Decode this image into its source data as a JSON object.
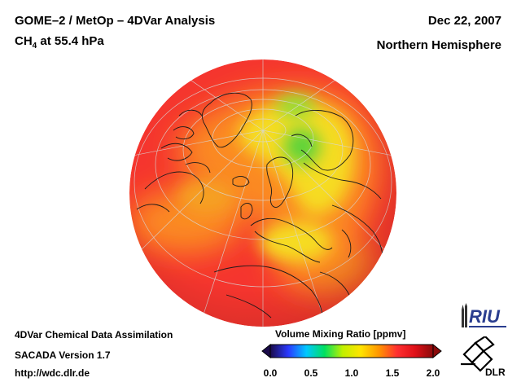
{
  "header": {
    "title": "GOME–2 / MetOp – 4DVar Analysis",
    "species_main": "CH",
    "species_sub": "4",
    "level": " at 55.4 hPa",
    "date": "Dec 22, 2007",
    "region": "Northern Hemisphere"
  },
  "footer": {
    "line1": "4DVar Chemical Data Assimilation",
    "line2": "SACADA Version 1.7",
    "line3": "http://wdc.dlr.de"
  },
  "colorbar": {
    "title": "Volume Mixing Ratio [ppmv]",
    "ticks": [
      "0.0",
      "0.5",
      "1.0",
      "1.5",
      "2.0"
    ],
    "range": [
      0.0,
      2.0
    ],
    "stops": [
      "#1a0a4a",
      "#2a3aff",
      "#00c8ff",
      "#00e060",
      "#c0f000",
      "#ffe400",
      "#ff9600",
      "#ff3030",
      "#e01018",
      "#8a0a0a"
    ]
  },
  "logos": {
    "riu": "RIU",
    "dlr": "DLR"
  },
  "map": {
    "projection": "orthographic",
    "hemisphere": "northern",
    "colors": {
      "background_field": "#f5352e",
      "orange": "#fb8a22",
      "yellow": "#f6dc24",
      "green": "#5cd33a"
    }
  }
}
